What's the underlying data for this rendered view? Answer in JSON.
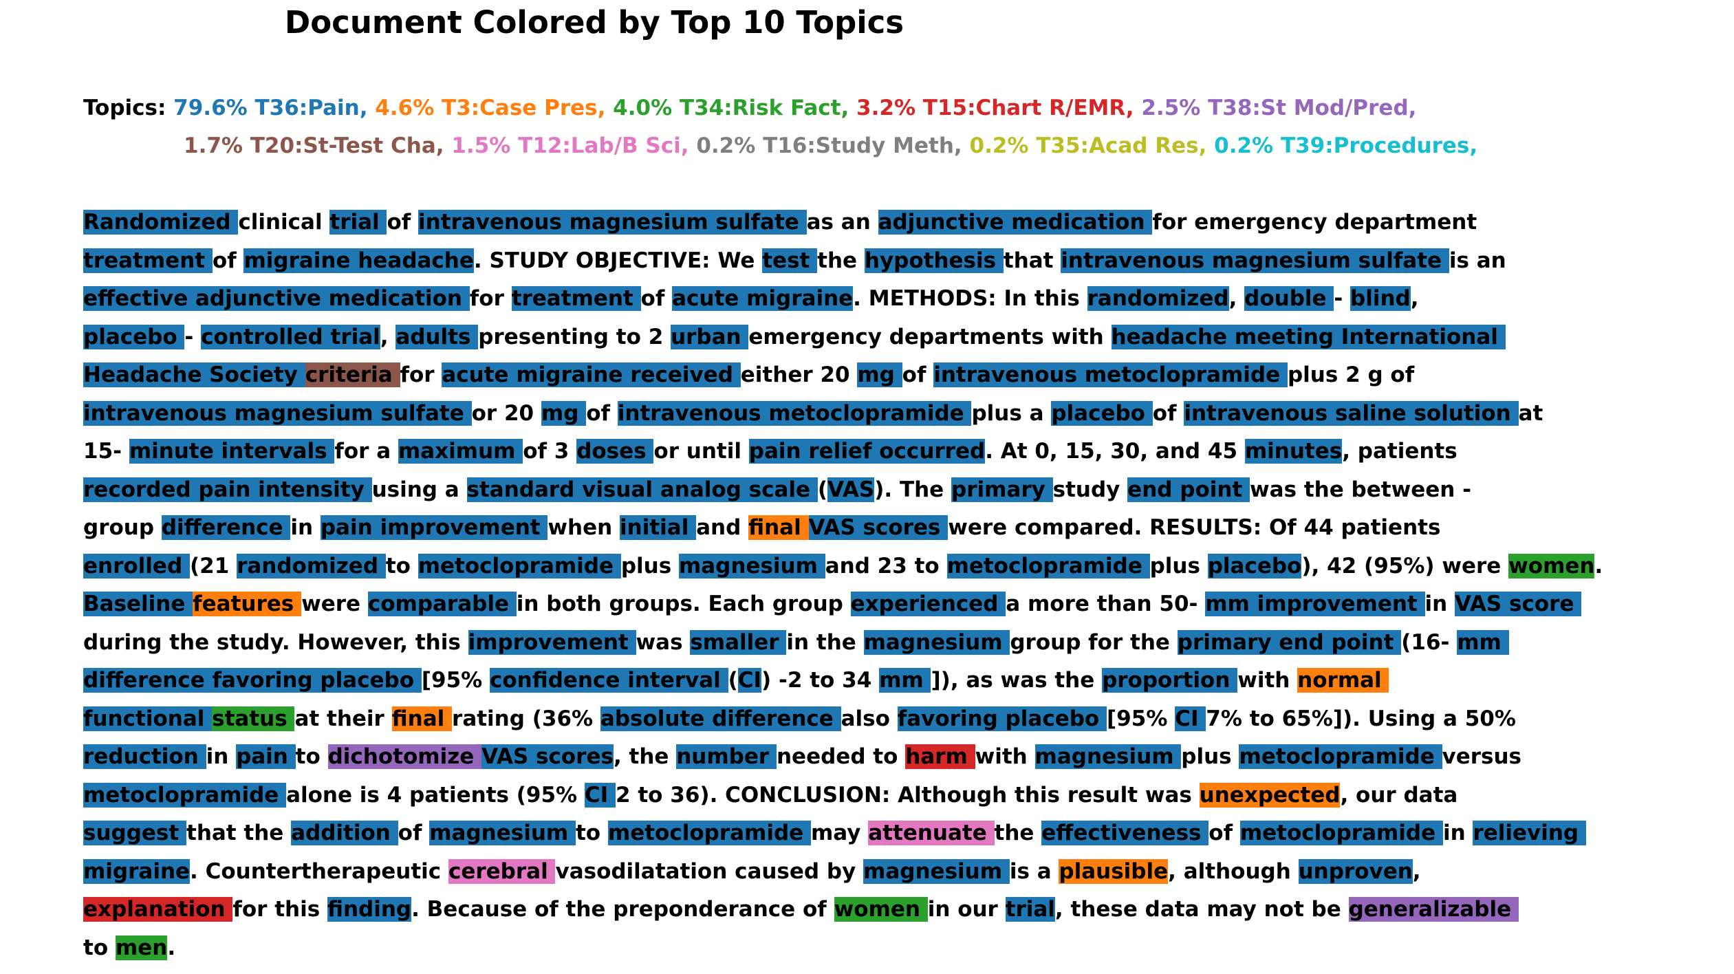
{
  "title": "Document Colored by Top 10 Topics",
  "topics_label": "Topics:",
  "topics": [
    {
      "text": "79.6% T36:Pain,",
      "color": "#1f77b4"
    },
    {
      "text": "4.6% T3:Case Pres,",
      "color": "#ff7f0e"
    },
    {
      "text": "4.0% T34:Risk Fact,",
      "color": "#2ca02c"
    },
    {
      "text": "3.2% T15:Chart R/EMR,",
      "color": "#d62728"
    },
    {
      "text": "2.5% T38:St Mod/Pred,",
      "color": "#9467bd"
    },
    {
      "text": "1.7% T20:St-Test Cha,",
      "color": "#8c564b"
    },
    {
      "text": "1.5% T12:Lab/B Sci,",
      "color": "#e377c2"
    },
    {
      "text": "0.2% T16:Study Meth,",
      "color": "#7f7f7f"
    },
    {
      "text": "0.2% T35:Acad Res,",
      "color": "#bcbd22"
    },
    {
      "text": "0.2% T39:Procedures,",
      "color": "#17becf"
    }
  ],
  "lines": [
    [
      [
        "Randomized ",
        "#1f77b4"
      ],
      [
        "clinical "
      ],
      [
        "trial ",
        "#1f77b4"
      ],
      [
        "of "
      ],
      [
        "intravenous magnesium sulfate ",
        "#1f77b4"
      ],
      [
        "as an "
      ],
      [
        "adjunctive medication ",
        "#1f77b4"
      ],
      [
        "for emergency department"
      ]
    ],
    [
      [
        "treatment ",
        "#1f77b4"
      ],
      [
        "of "
      ],
      [
        "migraine headache",
        "#1f77b4"
      ],
      [
        ". STUDY OBJECTIVE: We "
      ],
      [
        "test ",
        "#1f77b4"
      ],
      [
        "the "
      ],
      [
        "hypothesis ",
        "#1f77b4"
      ],
      [
        "that "
      ],
      [
        "intravenous magnesium sulfate ",
        "#1f77b4"
      ],
      [
        "is an"
      ]
    ],
    [
      [
        "effective adjunctive medication ",
        "#1f77b4"
      ],
      [
        "for "
      ],
      [
        "treatment ",
        "#1f77b4"
      ],
      [
        "of "
      ],
      [
        "acute migraine",
        "#1f77b4"
      ],
      [
        ". METHODS: In this "
      ],
      [
        "randomized",
        "#1f77b4"
      ],
      [
        ", "
      ],
      [
        "double ",
        "#1f77b4"
      ],
      [
        "- "
      ],
      [
        "blind",
        "#1f77b4"
      ],
      [
        ","
      ]
    ],
    [
      [
        "placebo ",
        "#1f77b4"
      ],
      [
        "- "
      ],
      [
        "controlled trial",
        "#1f77b4"
      ],
      [
        ", "
      ],
      [
        "adults ",
        "#1f77b4"
      ],
      [
        "presenting to 2 "
      ],
      [
        "urban ",
        "#1f77b4"
      ],
      [
        "emergency departments with "
      ],
      [
        "headache meeting International ",
        "#1f77b4"
      ]
    ],
    [
      [
        "Headache Society ",
        "#1f77b4"
      ],
      [
        "criteria ",
        "#8c564b"
      ],
      [
        "for "
      ],
      [
        "acute migraine received ",
        "#1f77b4"
      ],
      [
        "either 20 "
      ],
      [
        "mg ",
        "#1f77b4"
      ],
      [
        "of "
      ],
      [
        "intravenous metoclopramide ",
        "#1f77b4"
      ],
      [
        "plus 2 g of"
      ]
    ],
    [
      [
        "intravenous magnesium sulfate ",
        "#1f77b4"
      ],
      [
        "or 20 "
      ],
      [
        "mg ",
        "#1f77b4"
      ],
      [
        "of "
      ],
      [
        "intravenous metoclopramide ",
        "#1f77b4"
      ],
      [
        "plus a "
      ],
      [
        "placebo ",
        "#1f77b4"
      ],
      [
        "of "
      ],
      [
        "intravenous saline solution ",
        "#1f77b4"
      ],
      [
        "at"
      ]
    ],
    [
      [
        "15- "
      ],
      [
        "minute intervals ",
        "#1f77b4"
      ],
      [
        "for a "
      ],
      [
        "maximum ",
        "#1f77b4"
      ],
      [
        "of 3 "
      ],
      [
        "doses ",
        "#1f77b4"
      ],
      [
        "or until "
      ],
      [
        "pain relief occurred",
        "#1f77b4"
      ],
      [
        ". At 0, 15, 30, and 45 "
      ],
      [
        "minutes",
        "#1f77b4"
      ],
      [
        ", patients"
      ]
    ],
    [
      [
        "recorded pain intensity ",
        "#1f77b4"
      ],
      [
        "using a "
      ],
      [
        "standard visual analog scale ",
        "#1f77b4"
      ],
      [
        "("
      ],
      [
        "VAS",
        "#1f77b4"
      ],
      [
        "). The "
      ],
      [
        "primary ",
        "#1f77b4"
      ],
      [
        "study "
      ],
      [
        "end point ",
        "#1f77b4"
      ],
      [
        "was the between -"
      ]
    ],
    [
      [
        "group "
      ],
      [
        "difference ",
        "#1f77b4"
      ],
      [
        "in "
      ],
      [
        "pain improvement ",
        "#1f77b4"
      ],
      [
        "when "
      ],
      [
        "initial ",
        "#1f77b4"
      ],
      [
        "and "
      ],
      [
        "final ",
        "#ff7f0e"
      ],
      [
        "VAS scores ",
        "#1f77b4"
      ],
      [
        "were compared. RESULTS: Of 44 patients"
      ]
    ],
    [
      [
        "enrolled ",
        "#1f77b4"
      ],
      [
        "(21 "
      ],
      [
        "randomized ",
        "#1f77b4"
      ],
      [
        "to "
      ],
      [
        "metoclopramide ",
        "#1f77b4"
      ],
      [
        "plus "
      ],
      [
        "magnesium ",
        "#1f77b4"
      ],
      [
        "and 23 to "
      ],
      [
        "metoclopramide ",
        "#1f77b4"
      ],
      [
        "plus "
      ],
      [
        "placebo",
        "#1f77b4"
      ],
      [
        "), 42 (95%) were "
      ],
      [
        "women",
        "#2ca02c"
      ],
      [
        "."
      ]
    ],
    [
      [
        "Baseline ",
        "#1f77b4"
      ],
      [
        "features ",
        "#ff7f0e"
      ],
      [
        "were "
      ],
      [
        "comparable ",
        "#1f77b4"
      ],
      [
        "in both groups. Each group "
      ],
      [
        "experienced ",
        "#1f77b4"
      ],
      [
        "a more than 50- "
      ],
      [
        "mm improvement ",
        "#1f77b4"
      ],
      [
        "in "
      ],
      [
        "VAS score ",
        "#1f77b4"
      ]
    ],
    [
      [
        "during the study. However, this "
      ],
      [
        "improvement ",
        "#1f77b4"
      ],
      [
        "was "
      ],
      [
        "smaller ",
        "#1f77b4"
      ],
      [
        "in the "
      ],
      [
        "magnesium ",
        "#1f77b4"
      ],
      [
        "group for the "
      ],
      [
        "primary end point ",
        "#1f77b4"
      ],
      [
        "(16- "
      ],
      [
        "mm ",
        "#1f77b4"
      ]
    ],
    [
      [
        "difference favoring placebo ",
        "#1f77b4"
      ],
      [
        "[95% "
      ],
      [
        "confidence interval ",
        "#1f77b4"
      ],
      [
        "("
      ],
      [
        "CI",
        "#1f77b4"
      ],
      [
        ") -2 to 34 "
      ],
      [
        "mm ",
        "#1f77b4"
      ],
      [
        "]), as was the "
      ],
      [
        "proportion ",
        "#1f77b4"
      ],
      [
        "with "
      ],
      [
        "normal ",
        "#ff7f0e"
      ]
    ],
    [
      [
        "functional ",
        "#1f77b4"
      ],
      [
        "status ",
        "#2ca02c"
      ],
      [
        "at their "
      ],
      [
        "final ",
        "#ff7f0e"
      ],
      [
        "rating (36% "
      ],
      [
        "absolute difference ",
        "#1f77b4"
      ],
      [
        "also "
      ],
      [
        "favoring placebo ",
        "#1f77b4"
      ],
      [
        "[95% "
      ],
      [
        "CI ",
        "#1f77b4"
      ],
      [
        "7% to 65%]). Using a 50%"
      ]
    ],
    [
      [
        "reduction ",
        "#1f77b4"
      ],
      [
        "in "
      ],
      [
        "pain ",
        "#1f77b4"
      ],
      [
        "to "
      ],
      [
        "dichotomize ",
        "#9467bd"
      ],
      [
        "VAS scores",
        "#1f77b4"
      ],
      [
        ", the "
      ],
      [
        "number ",
        "#1f77b4"
      ],
      [
        "needed to "
      ],
      [
        "harm ",
        "#d62728"
      ],
      [
        "with "
      ],
      [
        "magnesium ",
        "#1f77b4"
      ],
      [
        "plus "
      ],
      [
        "metoclopramide ",
        "#1f77b4"
      ],
      [
        "versus"
      ]
    ],
    [
      [
        "metoclopramide ",
        "#1f77b4"
      ],
      [
        "alone is 4 patients (95% "
      ],
      [
        "CI ",
        "#1f77b4"
      ],
      [
        "2 to 36). CONCLUSION: Although this result was "
      ],
      [
        "unexpected",
        "#ff7f0e"
      ],
      [
        ", our data"
      ]
    ],
    [
      [
        "suggest ",
        "#1f77b4"
      ],
      [
        "that the "
      ],
      [
        "addition ",
        "#1f77b4"
      ],
      [
        "of "
      ],
      [
        "magnesium ",
        "#1f77b4"
      ],
      [
        "to "
      ],
      [
        "metoclopramide ",
        "#1f77b4"
      ],
      [
        "may "
      ],
      [
        "attenuate ",
        "#e377c2"
      ],
      [
        "the "
      ],
      [
        "effectiveness ",
        "#1f77b4"
      ],
      [
        "of "
      ],
      [
        "metoclopramide ",
        "#1f77b4"
      ],
      [
        "in "
      ],
      [
        "relieving ",
        "#1f77b4"
      ]
    ],
    [
      [
        "migraine",
        "#1f77b4"
      ],
      [
        ". Countertherapeutic "
      ],
      [
        "cerebral ",
        "#e377c2"
      ],
      [
        "vasodilatation caused by "
      ],
      [
        "magnesium ",
        "#1f77b4"
      ],
      [
        "is a "
      ],
      [
        "plausible",
        "#ff7f0e"
      ],
      [
        ", although "
      ],
      [
        "unproven",
        "#1f77b4"
      ],
      [
        ","
      ]
    ],
    [
      [
        "explanation ",
        "#d62728"
      ],
      [
        "for this "
      ],
      [
        "finding",
        "#1f77b4"
      ],
      [
        ". Because of the preponderance of "
      ],
      [
        "women ",
        "#2ca02c"
      ],
      [
        "in our "
      ],
      [
        "trial",
        "#1f77b4"
      ],
      [
        ", these data may not be "
      ],
      [
        "generalizable ",
        "#9467bd"
      ]
    ],
    [
      [
        "to "
      ],
      [
        "men",
        "#2ca02c"
      ],
      [
        "."
      ]
    ]
  ]
}
